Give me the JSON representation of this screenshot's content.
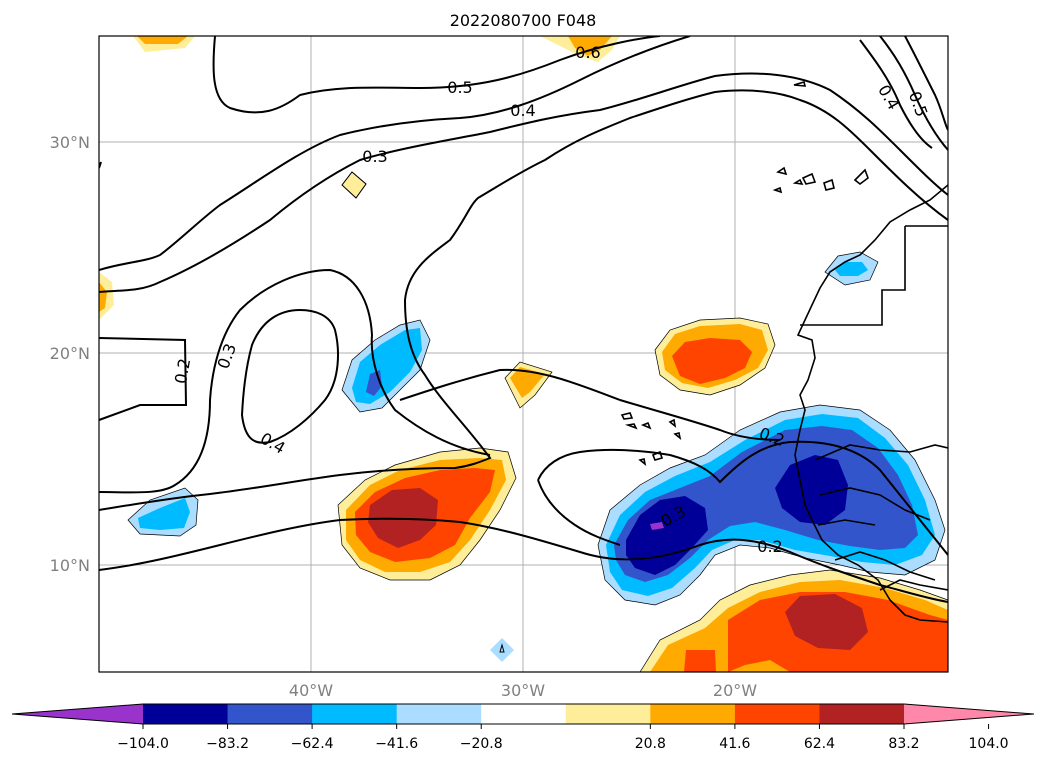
{
  "title": "2022080700 F048",
  "axes": {
    "lat_labels": [
      "30°N",
      "20°N",
      "10°N"
    ],
    "lon_labels": [
      "40°W",
      "30°W",
      "20°W"
    ]
  },
  "contour_labels": [
    "0.5",
    "0.4",
    "0.3",
    "0.6",
    "0.4",
    "0.5",
    "0.2",
    "0.3",
    "0.4",
    "0.2",
    "0.3",
    "0.2"
  ],
  "colorbar": {
    "tick_labels": [
      "−104.0",
      "−83.2",
      "−62.4",
      "−41.6",
      "−20.8",
      "20.8",
      "41.6",
      "62.4",
      "83.2",
      "104.0"
    ],
    "colors": [
      "#9933cc",
      "#000099",
      "#3355cc",
      "#00bbff",
      "#aaddff",
      "#ffffff",
      "#ffee99",
      "#ffaa00",
      "#ff4400",
      "#b22222",
      "#ff88aa"
    ]
  }
}
